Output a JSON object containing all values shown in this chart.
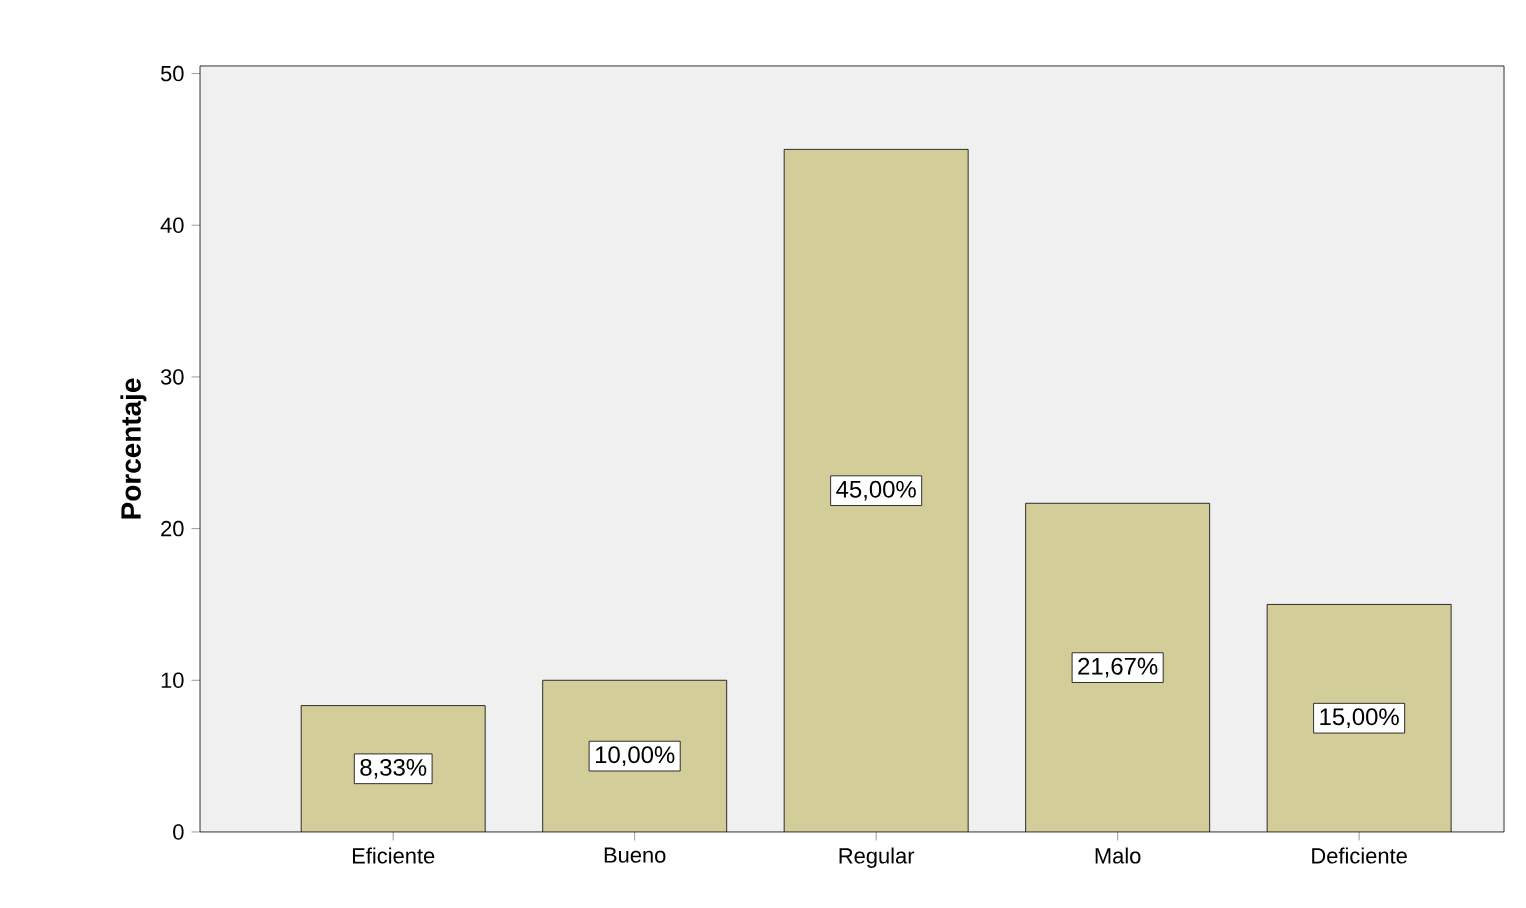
{
  "chart_data": {
    "type": "bar",
    "ylabel": "Porcentaje",
    "categories": [
      "Eficiente",
      "Bueno",
      "Regular",
      "Malo",
      "Deficiente"
    ],
    "values": [
      8.33,
      10.0,
      45.0,
      21.67,
      15.0
    ],
    "value_labels": [
      "8,33%",
      "10,00%",
      "45,00%",
      "21,67%",
      "15,00%"
    ],
    "color": "#d3cd9a",
    "ylim": [
      0,
      50.5
    ],
    "yticks": [
      0,
      10,
      20,
      30,
      40,
      50
    ]
  }
}
